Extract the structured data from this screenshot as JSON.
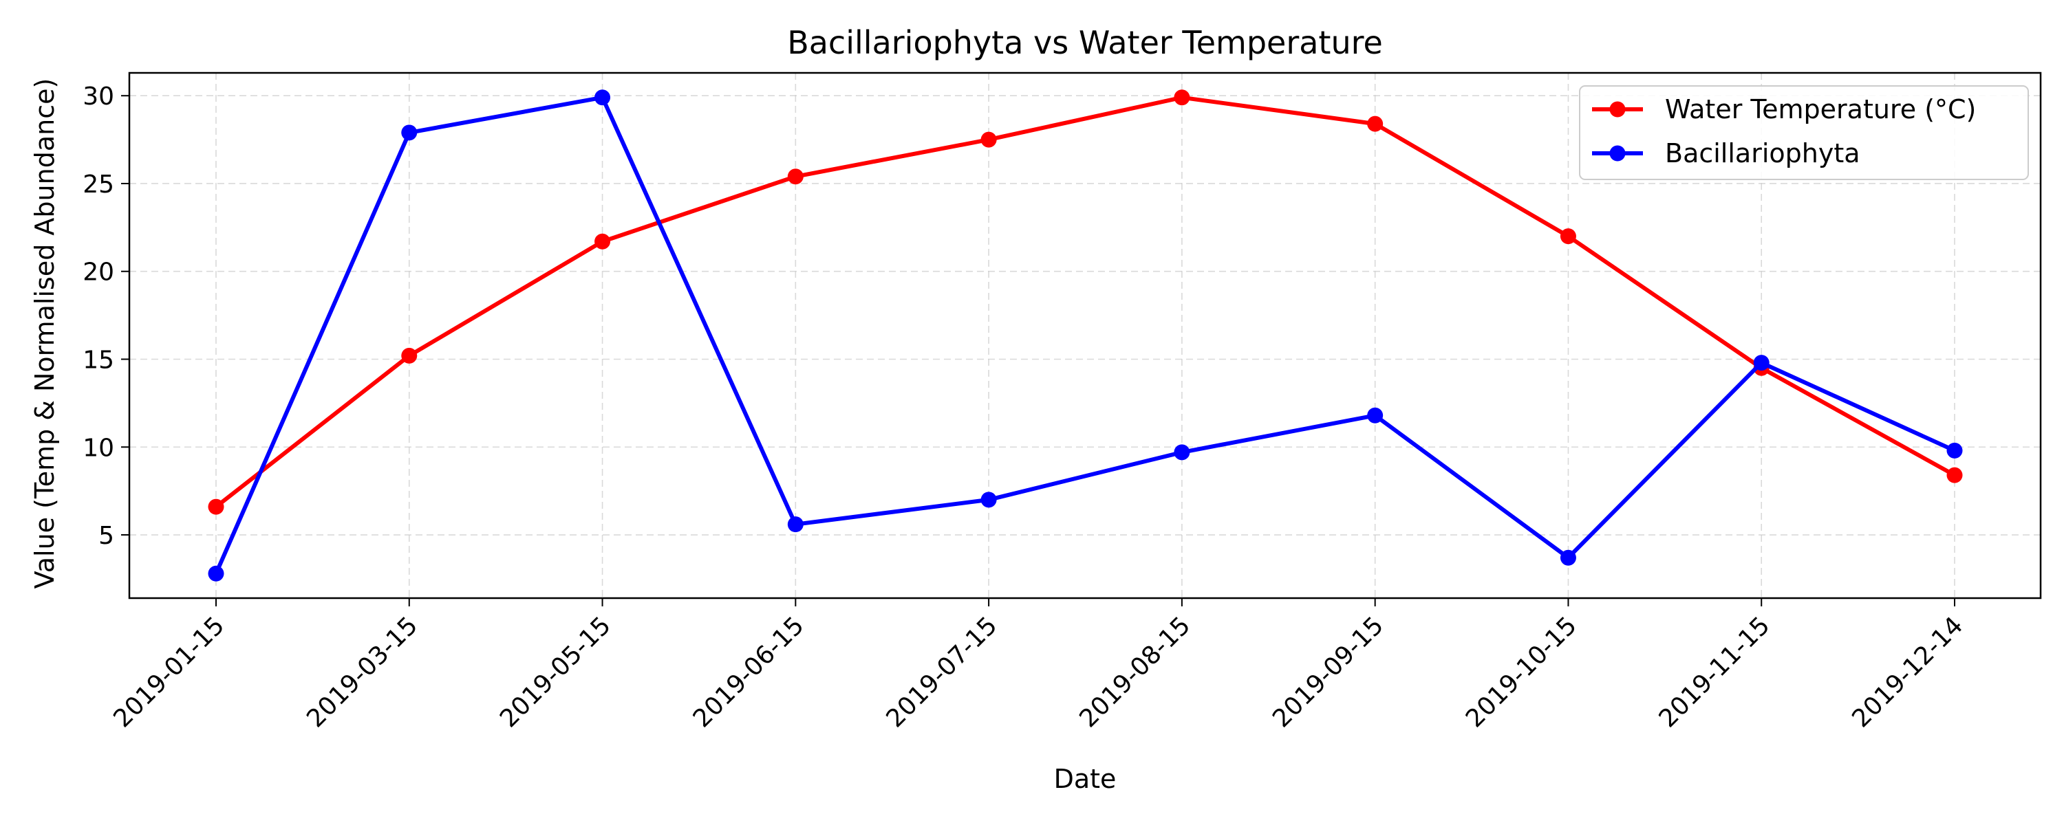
{
  "chart_data": {
    "type": "line",
    "title": "Bacillariophyta vs Water Temperature",
    "xlabel": "Date",
    "ylabel": "Value (Temp & Normalised Abundance)",
    "x": [
      "2019-01-15",
      "2019-03-15",
      "2019-05-15",
      "2019-06-15",
      "2019-07-15",
      "2019-08-15",
      "2019-09-15",
      "2019-10-15",
      "2019-11-15",
      "2019-12-14"
    ],
    "ylim": [
      1.4,
      31.3
    ],
    "yticks": [
      5,
      10,
      15,
      20,
      25,
      30
    ],
    "grid": true,
    "legend_position": "top-right",
    "series": [
      {
        "name": "Water Temperature (°C)",
        "color": "#ff0000",
        "values": [
          6.6,
          15.2,
          21.7,
          25.4,
          27.5,
          29.9,
          28.4,
          22.0,
          14.5,
          8.4
        ]
      },
      {
        "name": "Bacillariophyta",
        "color": "#0000ff",
        "values": [
          2.8,
          27.9,
          29.9,
          5.6,
          7.0,
          9.7,
          11.8,
          3.7,
          14.8,
          9.8
        ]
      }
    ]
  }
}
